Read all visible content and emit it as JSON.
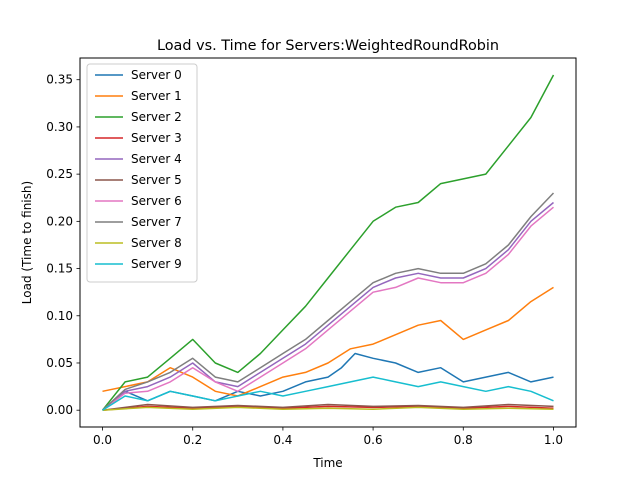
{
  "chart_data": {
    "type": "line",
    "title": "Load vs. Time for Servers:WeightedRoundRobin",
    "xlabel": "Time",
    "ylabel": "Load (Time to finish)",
    "xlim": [
      -0.05,
      1.05
    ],
    "ylim": [
      -0.0178,
      0.373
    ],
    "xticks": [
      0.0,
      0.2,
      0.4,
      0.6,
      0.8,
      1.0
    ],
    "xtick_labels": [
      "0.0",
      "0.2",
      "0.4",
      "0.6",
      "0.8",
      "1.0"
    ],
    "yticks": [
      0.0,
      0.05,
      0.1,
      0.15,
      0.2,
      0.25,
      0.3,
      0.35
    ],
    "ytick_labels": [
      "0.00",
      "0.05",
      "0.10",
      "0.15",
      "0.20",
      "0.25",
      "0.30",
      "0.35"
    ],
    "grid": false,
    "legend_position": "top-left",
    "series": [
      {
        "name": "Server 0",
        "color": "#1f77b4",
        "x": [
          0.0,
          0.05,
          0.1,
          0.15,
          0.2,
          0.25,
          0.3,
          0.35,
          0.4,
          0.45,
          0.5,
          0.53,
          0.56,
          0.6,
          0.65,
          0.7,
          0.75,
          0.8,
          0.85,
          0.9,
          0.95,
          1.0
        ],
        "y": [
          0.0,
          0.02,
          0.01,
          0.02,
          0.015,
          0.01,
          0.02,
          0.015,
          0.02,
          0.03,
          0.035,
          0.045,
          0.06,
          0.055,
          0.05,
          0.04,
          0.045,
          0.03,
          0.035,
          0.04,
          0.03,
          0.035
        ]
      },
      {
        "name": "Server 1",
        "color": "#ff7f0e",
        "x": [
          0.0,
          0.05,
          0.1,
          0.15,
          0.2,
          0.25,
          0.3,
          0.35,
          0.4,
          0.45,
          0.5,
          0.55,
          0.6,
          0.65,
          0.7,
          0.75,
          0.8,
          0.85,
          0.9,
          0.95,
          1.0
        ],
        "y": [
          0.02,
          0.025,
          0.03,
          0.045,
          0.035,
          0.02,
          0.015,
          0.025,
          0.035,
          0.04,
          0.05,
          0.065,
          0.07,
          0.08,
          0.09,
          0.095,
          0.075,
          0.085,
          0.095,
          0.115,
          0.13
        ]
      },
      {
        "name": "Server 2",
        "color": "#2ca02c",
        "x": [
          0.0,
          0.05,
          0.1,
          0.15,
          0.2,
          0.25,
          0.3,
          0.35,
          0.4,
          0.45,
          0.5,
          0.55,
          0.6,
          0.65,
          0.7,
          0.75,
          0.8,
          0.85,
          0.9,
          0.95,
          1.0
        ],
        "y": [
          0.0,
          0.03,
          0.035,
          0.055,
          0.075,
          0.05,
          0.04,
          0.06,
          0.085,
          0.11,
          0.14,
          0.17,
          0.2,
          0.215,
          0.22,
          0.24,
          0.245,
          0.25,
          0.28,
          0.31,
          0.355
        ]
      },
      {
        "name": "Server 3",
        "color": "#d62728",
        "x": [
          0.0,
          0.1,
          0.2,
          0.3,
          0.4,
          0.5,
          0.6,
          0.7,
          0.8,
          0.9,
          1.0
        ],
        "y": [
          0.0,
          0.004,
          0.002,
          0.004,
          0.002,
          0.004,
          0.003,
          0.004,
          0.002,
          0.004,
          0.002
        ]
      },
      {
        "name": "Server 4",
        "color": "#9467bd",
        "x": [
          0.0,
          0.05,
          0.1,
          0.15,
          0.2,
          0.25,
          0.3,
          0.35,
          0.4,
          0.45,
          0.5,
          0.55,
          0.6,
          0.65,
          0.7,
          0.75,
          0.8,
          0.85,
          0.9,
          0.95,
          1.0
        ],
        "y": [
          0.0,
          0.02,
          0.025,
          0.035,
          0.05,
          0.03,
          0.025,
          0.04,
          0.055,
          0.07,
          0.09,
          0.11,
          0.13,
          0.14,
          0.145,
          0.14,
          0.14,
          0.15,
          0.17,
          0.2,
          0.22
        ]
      },
      {
        "name": "Server 5",
        "color": "#8c564b",
        "x": [
          0.0,
          0.1,
          0.2,
          0.3,
          0.4,
          0.5,
          0.6,
          0.7,
          0.8,
          0.9,
          1.0
        ],
        "y": [
          0.0,
          0.006,
          0.003,
          0.005,
          0.003,
          0.006,
          0.004,
          0.005,
          0.003,
          0.006,
          0.004
        ]
      },
      {
        "name": "Server 6",
        "color": "#e377c2",
        "x": [
          0.0,
          0.05,
          0.1,
          0.15,
          0.2,
          0.25,
          0.3,
          0.35,
          0.4,
          0.45,
          0.5,
          0.55,
          0.6,
          0.65,
          0.7,
          0.75,
          0.8,
          0.85,
          0.9,
          0.95,
          1.0
        ],
        "y": [
          0.0,
          0.018,
          0.02,
          0.03,
          0.045,
          0.03,
          0.02,
          0.035,
          0.05,
          0.065,
          0.085,
          0.105,
          0.125,
          0.13,
          0.14,
          0.135,
          0.135,
          0.145,
          0.165,
          0.195,
          0.215
        ]
      },
      {
        "name": "Server 7",
        "color": "#7f7f7f",
        "x": [
          0.0,
          0.05,
          0.1,
          0.15,
          0.2,
          0.25,
          0.3,
          0.35,
          0.4,
          0.45,
          0.5,
          0.55,
          0.6,
          0.65,
          0.7,
          0.75,
          0.8,
          0.85,
          0.9,
          0.95,
          1.0
        ],
        "y": [
          0.0,
          0.022,
          0.03,
          0.04,
          0.055,
          0.035,
          0.03,
          0.045,
          0.06,
          0.075,
          0.095,
          0.115,
          0.135,
          0.145,
          0.15,
          0.145,
          0.145,
          0.155,
          0.175,
          0.205,
          0.23
        ]
      },
      {
        "name": "Server 8",
        "color": "#bcbd22",
        "x": [
          0.0,
          0.1,
          0.2,
          0.3,
          0.4,
          0.5,
          0.6,
          0.7,
          0.8,
          0.9,
          1.0
        ],
        "y": [
          0.0,
          0.003,
          0.001,
          0.003,
          0.001,
          0.002,
          0.001,
          0.003,
          0.001,
          0.002,
          0.001
        ]
      },
      {
        "name": "Server 9",
        "color": "#17becf",
        "x": [
          0.0,
          0.05,
          0.1,
          0.15,
          0.2,
          0.25,
          0.3,
          0.35,
          0.4,
          0.45,
          0.5,
          0.55,
          0.6,
          0.65,
          0.7,
          0.75,
          0.8,
          0.85,
          0.9,
          0.95,
          1.0
        ],
        "y": [
          0.0,
          0.015,
          0.01,
          0.02,
          0.015,
          0.01,
          0.015,
          0.02,
          0.015,
          0.02,
          0.025,
          0.03,
          0.035,
          0.03,
          0.025,
          0.03,
          0.025,
          0.02,
          0.025,
          0.02,
          0.01
        ]
      }
    ]
  }
}
